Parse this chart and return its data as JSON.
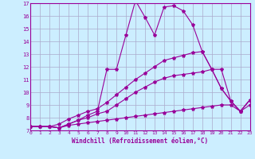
{
  "xlabel": "Windchill (Refroidissement éolien,°C)",
  "background_color": "#cceeff",
  "grid_color": "#aaaacc",
  "line_color": "#990099",
  "xlim": [
    0,
    23
  ],
  "ylim": [
    7,
    17
  ],
  "xticks": [
    0,
    1,
    2,
    3,
    4,
    5,
    6,
    7,
    8,
    9,
    10,
    11,
    12,
    13,
    14,
    15,
    16,
    17,
    18,
    19,
    20,
    21,
    22,
    23
  ],
  "yticks": [
    7,
    8,
    9,
    10,
    11,
    12,
    13,
    14,
    15,
    16,
    17
  ],
  "series": [
    {
      "comment": "top jagged line - peaks at 11=17.2, then 14-15=16.7-16.8",
      "x": [
        0,
        1,
        2,
        3,
        4,
        5,
        6,
        7,
        8,
        9,
        10,
        11,
        12,
        13,
        14,
        15,
        16,
        17,
        18,
        19,
        20,
        21,
        22,
        23
      ],
      "y": [
        7.3,
        7.3,
        7.3,
        7.2,
        7.5,
        7.8,
        8.2,
        8.5,
        11.8,
        11.8,
        14.5,
        17.2,
        15.9,
        14.5,
        16.7,
        16.8,
        16.4,
        15.3,
        13.2,
        11.8,
        10.3,
        9.3,
        8.5,
        9.4
      ]
    },
    {
      "x": [
        0,
        1,
        2,
        3,
        4,
        5,
        6,
        7,
        8,
        9,
        10,
        11,
        12,
        13,
        14,
        15,
        16,
        17,
        18,
        19,
        20,
        21,
        22,
        23
      ],
      "y": [
        7.3,
        7.3,
        7.3,
        7.5,
        7.9,
        8.2,
        8.5,
        8.7,
        9.2,
        9.8,
        10.4,
        11.0,
        11.5,
        12.0,
        12.5,
        12.7,
        12.9,
        13.1,
        13.2,
        11.8,
        11.8,
        9.3,
        8.5,
        9.4
      ]
    },
    {
      "x": [
        0,
        1,
        2,
        3,
        4,
        5,
        6,
        7,
        8,
        9,
        10,
        11,
        12,
        13,
        14,
        15,
        16,
        17,
        18,
        19,
        20,
        21,
        22,
        23
      ],
      "y": [
        7.3,
        7.3,
        7.3,
        7.2,
        7.5,
        7.8,
        8.0,
        8.3,
        8.5,
        9.0,
        9.5,
        10.0,
        10.4,
        10.8,
        11.1,
        11.3,
        11.4,
        11.5,
        11.6,
        11.8,
        10.3,
        9.3,
        8.5,
        9.4
      ]
    },
    {
      "x": [
        0,
        1,
        2,
        3,
        4,
        5,
        6,
        7,
        8,
        9,
        10,
        11,
        12,
        13,
        14,
        15,
        16,
        17,
        18,
        19,
        20,
        21,
        22,
        23
      ],
      "y": [
        7.3,
        7.3,
        7.3,
        7.2,
        7.4,
        7.5,
        7.6,
        7.7,
        7.8,
        7.9,
        8.0,
        8.1,
        8.2,
        8.3,
        8.4,
        8.5,
        8.6,
        8.7,
        8.8,
        8.9,
        9.0,
        9.0,
        8.5,
        9.0
      ]
    }
  ]
}
